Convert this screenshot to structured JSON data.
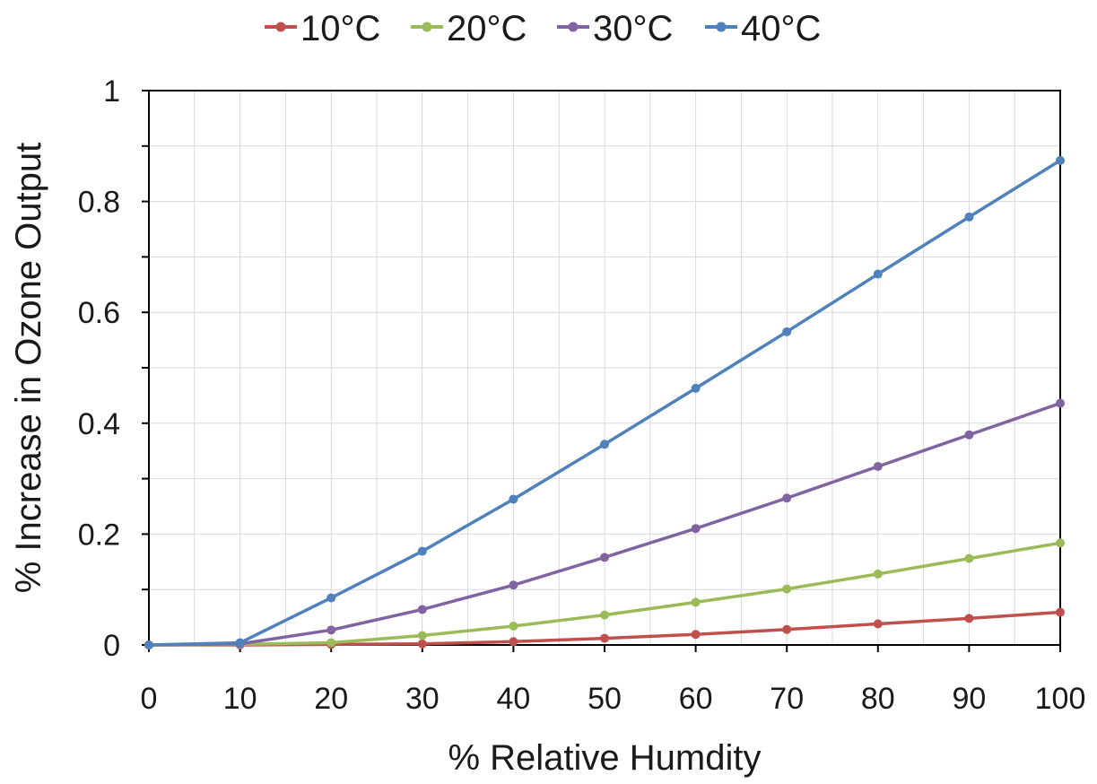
{
  "chart_data": {
    "type": "line",
    "title": "",
    "xlabel": "% Relative Humdity",
    "ylabel": "% Increase in Ozone Output",
    "xlim": [
      0,
      100
    ],
    "ylim": [
      0,
      1
    ],
    "x_ticks": [
      "0",
      "10",
      "20",
      "30",
      "40",
      "50",
      "60",
      "70",
      "80",
      "90",
      "100"
    ],
    "y_ticks": [
      "0",
      "0.2",
      "0.4",
      "0.6",
      "0.8",
      "1"
    ],
    "grid": true,
    "legend_position": "top",
    "x": [
      0,
      10,
      20,
      30,
      40,
      50,
      60,
      70,
      80,
      90,
      100
    ],
    "series": [
      {
        "name": "10°C",
        "color": "#c0504d",
        "values": [
          0,
          0,
          0.001,
          0.002,
          0.006,
          0.012,
          0.019,
          0.028,
          0.038,
          0.048,
          0.059
        ]
      },
      {
        "name": "20°C",
        "color": "#9bbb59",
        "values": [
          0,
          0.001,
          0.004,
          0.017,
          0.034,
          0.054,
          0.077,
          0.101,
          0.128,
          0.156,
          0.184
        ]
      },
      {
        "name": "30°C",
        "color": "#8064a2",
        "values": [
          0,
          0.002,
          0.027,
          0.064,
          0.108,
          0.158,
          0.21,
          0.265,
          0.322,
          0.379,
          0.436
        ]
      },
      {
        "name": "40°C",
        "color": "#4f81bd",
        "values": [
          0,
          0.004,
          0.085,
          0.169,
          0.263,
          0.362,
          0.463,
          0.565,
          0.669,
          0.772,
          0.874
        ]
      }
    ]
  }
}
